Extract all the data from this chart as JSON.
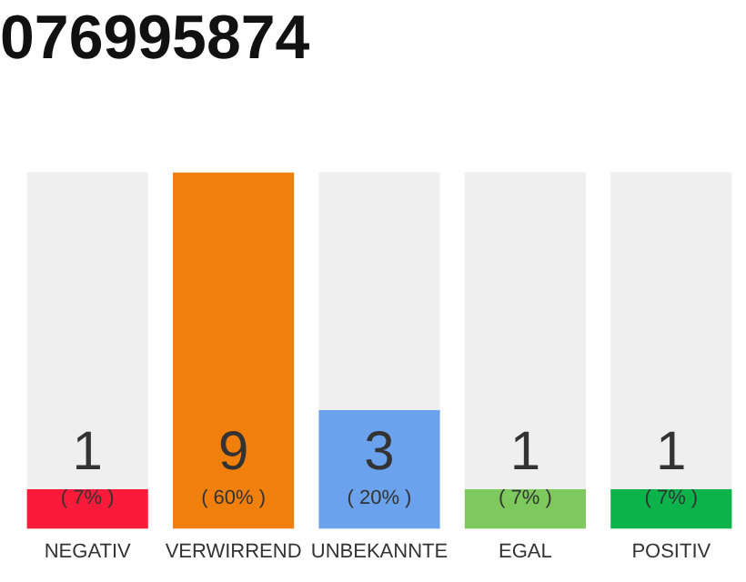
{
  "chart_data": {
    "type": "bar",
    "title": "076995874",
    "categories": [
      "NEGATIV",
      "VERWIRREND",
      "UNBEKANNTE",
      "EGAL",
      "POSITIV"
    ],
    "values": [
      1,
      9,
      3,
      1,
      1
    ],
    "colors": [
      "#fa1a3a",
      "#f07f0c",
      "#6aa2ee",
      "#7dc95e",
      "#0bb34a"
    ],
    "ylim": [
      0,
      9
    ],
    "tick_labels": "x",
    "grid": false,
    "legend": false,
    "data_labels": true,
    "annotations": [
      "( 7% )",
      "( 60% )",
      "( 20% )",
      "( 7% )",
      "( 7% )"
    ]
  }
}
